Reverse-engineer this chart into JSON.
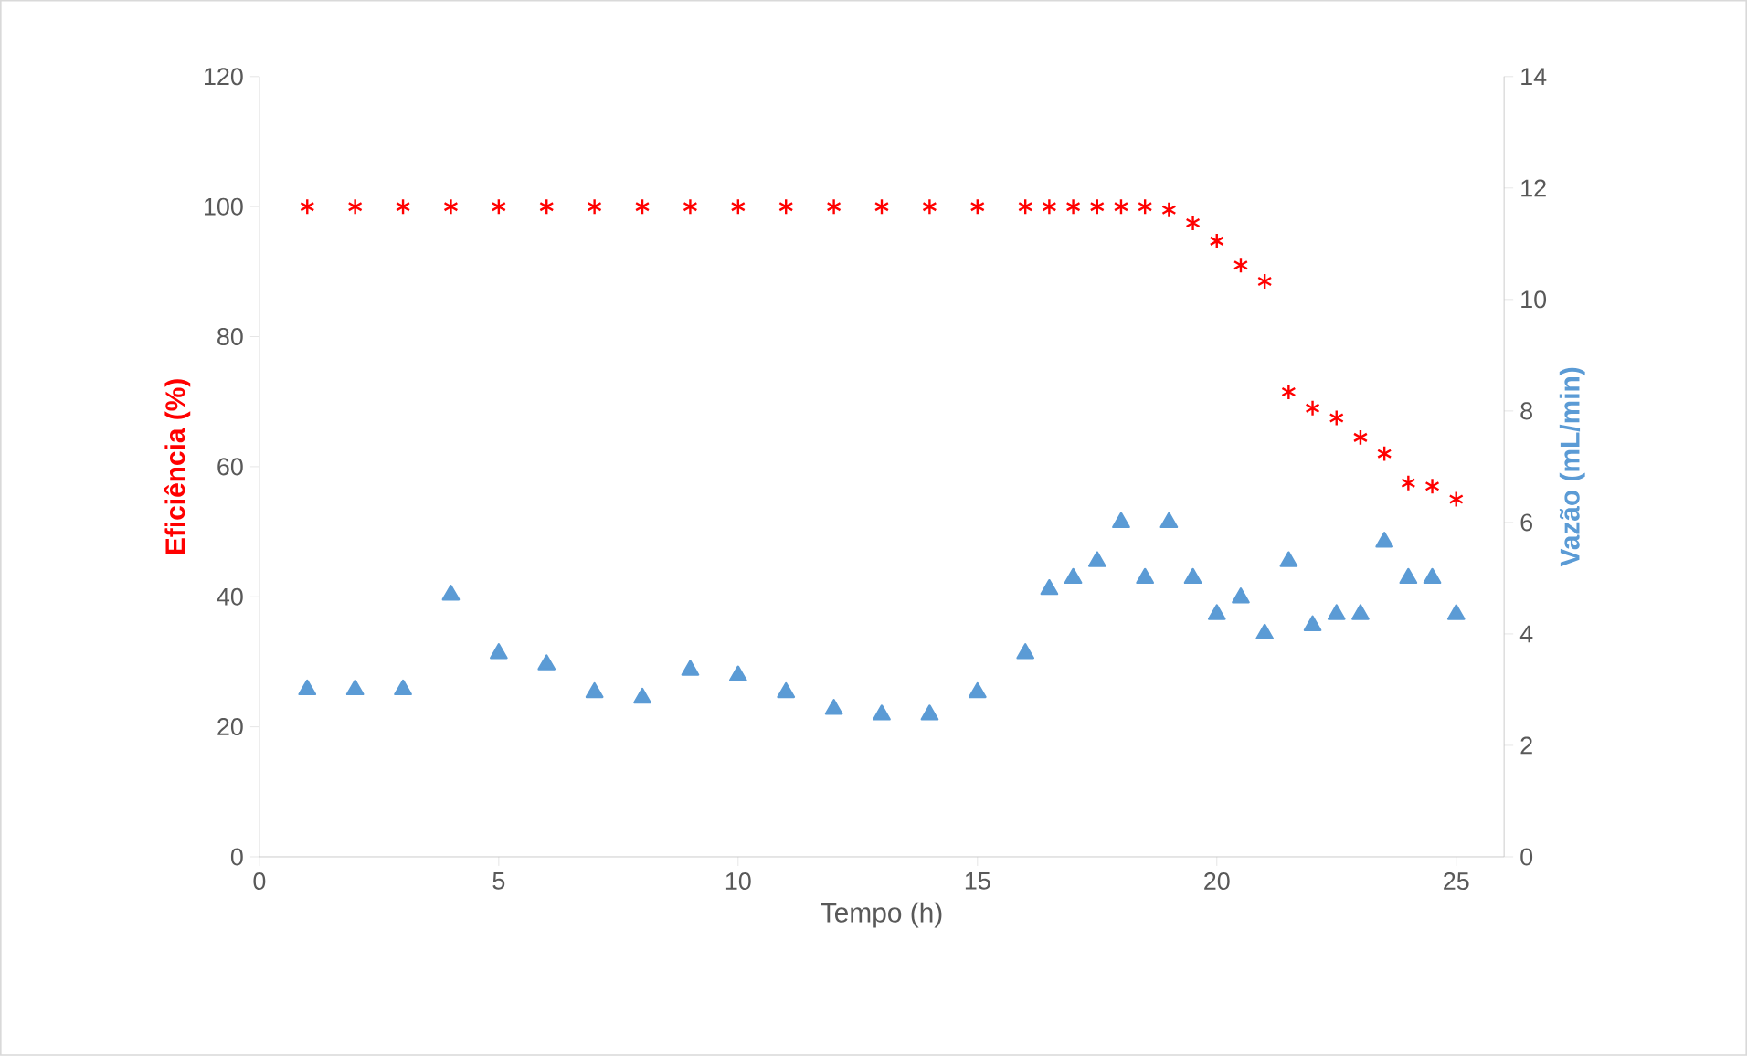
{
  "chart_data": {
    "type": "scatter",
    "xlabel": "Tempo (h)",
    "ylabel": "Eficiência (%)",
    "y2label": "Vazão (mL/min)",
    "x": [
      1,
      2,
      3,
      4,
      5,
      6,
      7,
      8,
      9,
      10,
      11,
      12,
      13,
      14,
      15,
      16,
      16.5,
      17,
      17.5,
      18,
      18.5,
      19,
      19.5,
      20,
      20.5,
      21,
      21.5,
      22,
      22.5,
      23,
      23.5,
      24,
      24.5,
      25
    ],
    "series": [
      {
        "color": "#ff0000",
        "marker": "cross",
        "values": [
          100,
          100,
          100,
          100,
          100,
          100,
          100,
          100,
          100,
          100,
          100,
          100,
          100,
          100,
          100,
          100,
          100,
          100,
          100,
          100,
          100,
          99.5,
          97.5,
          94.7,
          91,
          88.5,
          71.5,
          69,
          67.5,
          64.5,
          62,
          57.5,
          57,
          55
        ]
      },
      {
        "color": "#5b9bd5",
        "marker": "triangle",
        "axis": "y2",
        "values": [
          3,
          3,
          3,
          4.7,
          3.65,
          3.45,
          2.95,
          2.85,
          3.35,
          3.25,
          2.95,
          2.65,
          2.55,
          2.55,
          2.95,
          3.65,
          4.8,
          5,
          5.3,
          6,
          5,
          6,
          5,
          4.35,
          4.65,
          4,
          5.3,
          4.15,
          4.35,
          4.35,
          5.65,
          5,
          5,
          4.35
        ]
      }
    ],
    "xlim": [
      0,
      26
    ],
    "xticks": [
      0,
      5,
      10,
      15,
      20,
      25
    ],
    "ylim": [
      0,
      120
    ],
    "yticks": [
      0,
      20,
      40,
      60,
      80,
      100,
      120
    ],
    "y2lim": [
      0,
      14
    ],
    "y2ticks": [
      0,
      2,
      4,
      6,
      8,
      10,
      12,
      14
    ]
  }
}
